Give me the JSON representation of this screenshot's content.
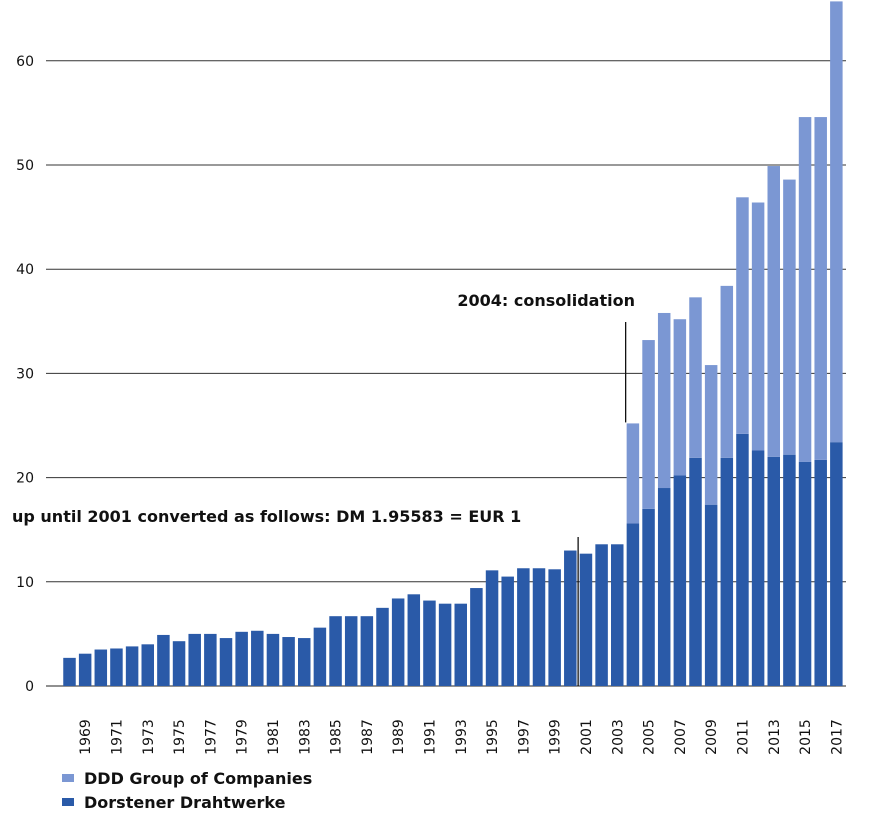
{
  "chart_data": {
    "type": "bar",
    "stacked": true,
    "categories": [
      "1968",
      "1969",
      "1970",
      "1971",
      "1972",
      "1973",
      "1974",
      "1975",
      "1976",
      "1977",
      "1978",
      "1979",
      "1980",
      "1981",
      "1982",
      "1983",
      "1984",
      "1985",
      "1986",
      "1987",
      "1988",
      "1989",
      "1990",
      "1991",
      "1992",
      "1993",
      "1994",
      "1995",
      "1996",
      "1997",
      "1998",
      "1999",
      "2000",
      "2001",
      "2002",
      "2003",
      "2004",
      "2005",
      "2006",
      "2007",
      "2008",
      "2009",
      "2010",
      "2011",
      "2012",
      "2013",
      "2014",
      "2015",
      "2016",
      "2017"
    ],
    "x_tick_labels": [
      "1969",
      "1971",
      "1973",
      "1975",
      "1977",
      "1979",
      "1981",
      "1983",
      "1985",
      "1987",
      "1989",
      "1991",
      "1993",
      "1995",
      "1997",
      "1999",
      "2001",
      "2003",
      "2005",
      "2007",
      "2009",
      "2011",
      "2013",
      "2015",
      "2017"
    ],
    "series": [
      {
        "name": "Dorstener Drahtwerke",
        "color": "#2a5aa8",
        "values": [
          2.7,
          3.1,
          3.5,
          3.6,
          3.8,
          4.0,
          4.9,
          4.3,
          5.0,
          5.0,
          4.6,
          5.2,
          5.3,
          5.0,
          4.7,
          4.6,
          5.6,
          6.7,
          6.7,
          6.7,
          7.5,
          8.4,
          8.8,
          8.2,
          7.9,
          7.9,
          9.4,
          11.1,
          10.5,
          11.3,
          11.3,
          11.2,
          13.0,
          12.7,
          13.6,
          13.6,
          15.6,
          17.0,
          19.0,
          20.2,
          21.9,
          17.4,
          21.9,
          24.2,
          22.6,
          22.0,
          22.2,
          21.5,
          21.7,
          23.4
        ]
      },
      {
        "name": "DDD Group of Companies",
        "color": "#7b97d3",
        "values": [
          0,
          0,
          0,
          0,
          0,
          0,
          0,
          0,
          0,
          0,
          0,
          0,
          0,
          0,
          0,
          0,
          0,
          0,
          0,
          0,
          0,
          0,
          0,
          0,
          0,
          0,
          0,
          0,
          0,
          0,
          0,
          0,
          0,
          0,
          0,
          0,
          9.6,
          16.2,
          16.8,
          15.0,
          15.4,
          13.4,
          16.5,
          22.7,
          23.8,
          27.9,
          26.4,
          33.1,
          32.9,
          42.3
        ]
      }
    ],
    "ylim": [
      0,
      65.5
    ],
    "yticks": [
      0,
      10,
      20,
      30,
      40,
      50,
      60
    ],
    "grid": true,
    "legend_position": "bottom-left",
    "annotations": [
      {
        "text": "2004: consolidation",
        "x": "2004"
      },
      {
        "text": "up until 2001 converted as follows: DM 1.95583 = EUR 1",
        "x": "2001"
      }
    ]
  },
  "legend": [
    {
      "label": "DDD Group of Companies",
      "color": "#7b97d3"
    },
    {
      "label": "Dorstener Drahtwerke",
      "color": "#2a5aa8"
    }
  ]
}
